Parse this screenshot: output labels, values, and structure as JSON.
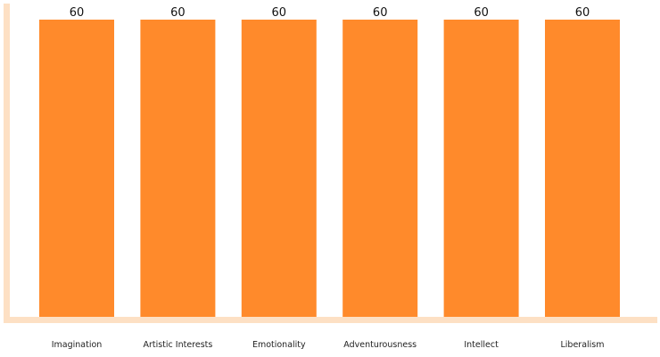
{
  "chart_data": {
    "type": "bar",
    "categories": [
      "Imagination",
      "Artistic Interests",
      "Emotionality",
      "Adventurousness",
      "Intellect",
      "Liberalism"
    ],
    "values": [
      60,
      60,
      60,
      60,
      60,
      60
    ],
    "ylim": [
      0,
      60
    ],
    "grid": false,
    "legend": "none",
    "colors": {
      "bar": "#ff8a2b",
      "axis": "#fde0c4"
    }
  }
}
